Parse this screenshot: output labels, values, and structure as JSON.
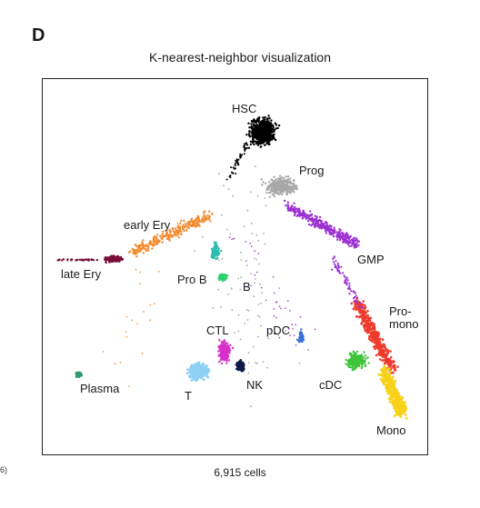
{
  "panel_letter": "D",
  "title": "K-nearest-neighbor visualization",
  "footer": "6,915 cells",
  "edge_fragment": "6)",
  "clusters": [
    {
      "key": "hsc",
      "label": "HSC",
      "color": "#000000"
    },
    {
      "key": "prog",
      "label": "Prog",
      "color": "#a8a8a8"
    },
    {
      "key": "early_ery",
      "label": "early Ery",
      "color": "#f28a2e"
    },
    {
      "key": "late_ery",
      "label": "late Ery",
      "color": "#7a0f3a"
    },
    {
      "key": "gmp",
      "label": "GMP",
      "color": "#9b30d0"
    },
    {
      "key": "pro_b",
      "label": "Pro B",
      "color": "#2bbcb0"
    },
    {
      "key": "b",
      "label": "B",
      "color": "#2fce72"
    },
    {
      "key": "pro_mono",
      "label": "Pro-\nmono",
      "color": "#ee3b2b"
    },
    {
      "key": "ctl",
      "label": "CTL",
      "color": "#d92fc9"
    },
    {
      "key": "pdc",
      "label": "pDC",
      "color": "#3a6fd8"
    },
    {
      "key": "plasma",
      "label": "Plasma",
      "color": "#2e9b6d"
    },
    {
      "key": "t",
      "label": "T",
      "color": "#8fd0f5"
    },
    {
      "key": "nk",
      "label": "NK",
      "color": "#0c1a4a"
    },
    {
      "key": "cdc",
      "label": "cDC",
      "color": "#3ec43a"
    },
    {
      "key": "mono",
      "label": "Mono",
      "color": "#f7d21a"
    }
  ]
}
